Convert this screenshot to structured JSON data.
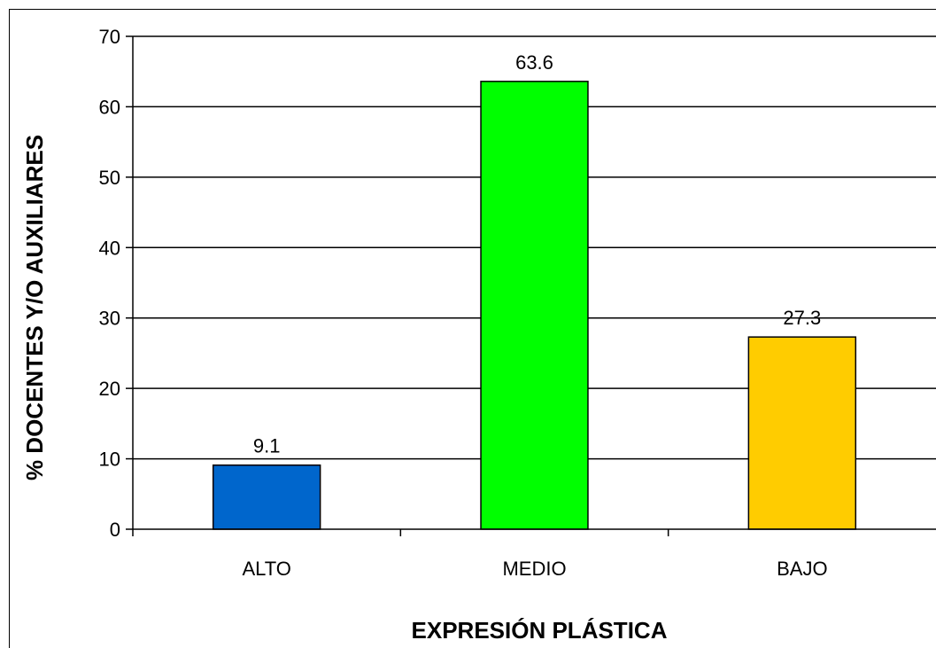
{
  "chart_data": {
    "type": "bar",
    "categories": [
      "ALTO",
      "MEDIO",
      "BAJO"
    ],
    "values": [
      9.1,
      63.6,
      27.3
    ],
    "data_labels": [
      "9.1",
      "63.6",
      "27.3"
    ],
    "colors": [
      "#0066cc",
      "#00ff00",
      "#ffcc00"
    ],
    "xlabel": "EXPRESIÓN PLÁSTICA",
    "ylabel": "% DOCENTES Y/O AUXILIARES",
    "ylim": [
      0,
      70
    ],
    "yticks": [
      "0",
      "10",
      "20",
      "30",
      "40",
      "50",
      "60",
      "70"
    ],
    "grid": true,
    "legend": "none"
  }
}
